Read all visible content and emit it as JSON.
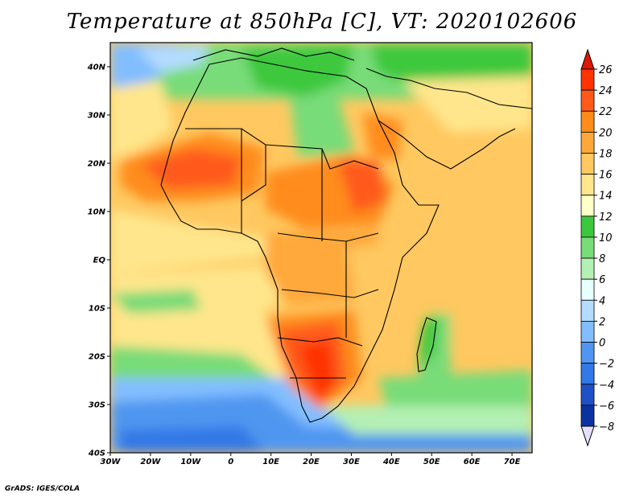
{
  "title": "Temperature at 850hPa [C], VT: 2020102606",
  "credit": "GrADS: IGES/COLA",
  "map": {
    "lat_range": [
      -40,
      45
    ],
    "lon_range": [
      -30,
      75
    ],
    "lat_ticks": [
      {
        "lat": 40,
        "label": "40N"
      },
      {
        "lat": 30,
        "label": "30N"
      },
      {
        "lat": 20,
        "label": "20N"
      },
      {
        "lat": 10,
        "label": "10N"
      },
      {
        "lat": 0,
        "label": "EQ"
      },
      {
        "lat": -10,
        "label": "10S"
      },
      {
        "lat": -20,
        "label": "20S"
      },
      {
        "lat": -30,
        "label": "30S"
      },
      {
        "lat": -40,
        "label": "40S"
      }
    ],
    "lon_ticks": [
      {
        "lon": -30,
        "label": "30W"
      },
      {
        "lon": -20,
        "label": "20W"
      },
      {
        "lon": -10,
        "label": "10W"
      },
      {
        "lon": 0,
        "label": "0"
      },
      {
        "lon": 10,
        "label": "10E"
      },
      {
        "lon": 20,
        "label": "20E"
      },
      {
        "lon": 30,
        "label": "30E"
      },
      {
        "lon": 40,
        "label": "40E"
      },
      {
        "lon": 50,
        "label": "50E"
      },
      {
        "lon": 60,
        "label": "60E"
      },
      {
        "lon": 70,
        "label": "70E"
      }
    ]
  },
  "colorbar": {
    "levels": [
      {
        "label": "26",
        "color": "#ff3300"
      },
      {
        "label": "24",
        "color": "#ff5a1a"
      },
      {
        "label": "22",
        "color": "#ff8c1a"
      },
      {
        "label": "20",
        "color": "#ffa83a"
      },
      {
        "label": "18",
        "color": "#ffc860"
      },
      {
        "label": "16",
        "color": "#ffe68c"
      },
      {
        "label": "14",
        "color": "#ffffc8"
      },
      {
        "label": "12",
        "color": "#3cc83c"
      },
      {
        "label": "10",
        "color": "#78dc78"
      },
      {
        "label": "8",
        "color": "#b4f0b4"
      },
      {
        "label": "6",
        "color": "#e6ffff"
      },
      {
        "label": "4",
        "color": "#b4dcff"
      },
      {
        "label": "2",
        "color": "#82beff"
      },
      {
        "label": "0",
        "color": "#5096f0"
      },
      {
        "label": "−2",
        "color": "#3278e6"
      },
      {
        "label": "−4",
        "color": "#1e50c8"
      },
      {
        "label": "−6",
        "color": "#0a32a0"
      },
      {
        "label": "−8",
        "color": "#0a1e78"
      }
    ],
    "top_color": "#e01800",
    "bottom_color": "#e6e0ff"
  }
}
